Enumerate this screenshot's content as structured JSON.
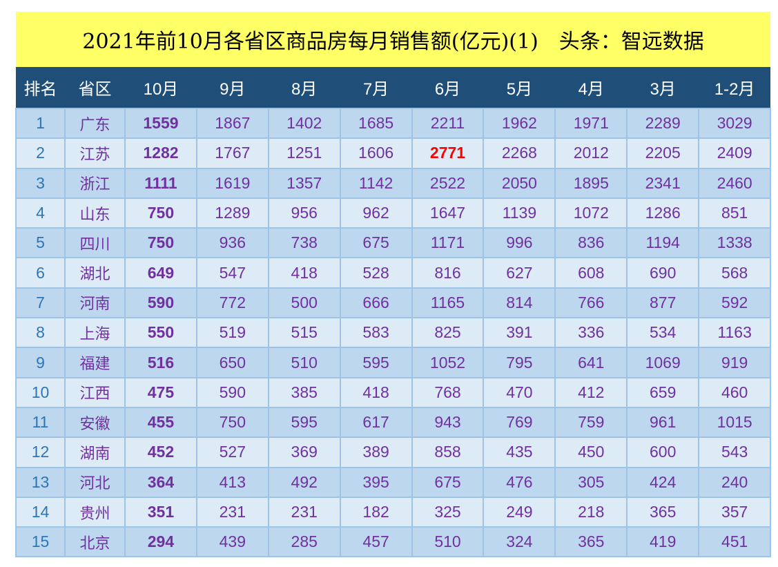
{
  "colors": {
    "title_bg": "#FFFF66",
    "title_text": "#000000",
    "header_bg": "#1F4E79",
    "header_text": "#FFFFFF",
    "row_odd": "#BDD7EE",
    "row_even": "#DDEBF7",
    "grid": "#9DC3E6",
    "rank_text": "#2E75B6",
    "value_text": "#7030A0"
  },
  "chart_data": {
    "type": "table",
    "title": "2021年前10月各省区商品房每月销售额(亿元)(1)　头条：智远数据",
    "columns": [
      "排名",
      "省区",
      "10月",
      "9月",
      "8月",
      "7月",
      "6月",
      "5月",
      "4月",
      "3月",
      "1-2月"
    ],
    "rows": [
      {
        "rank": 1,
        "province": "广东",
        "values": [
          1559,
          1867,
          1402,
          1685,
          2211,
          1962,
          1971,
          2289,
          3029
        ]
      },
      {
        "rank": 2,
        "province": "江苏",
        "values": [
          1282,
          1767,
          1251,
          1606,
          2771,
          2268,
          2012,
          2205,
          2409
        ]
      },
      {
        "rank": 3,
        "province": "浙江",
        "values": [
          1111,
          1619,
          1357,
          1142,
          2522,
          2050,
          1895,
          2341,
          2460
        ]
      },
      {
        "rank": 4,
        "province": "山东",
        "values": [
          750,
          1289,
          956,
          962,
          1647,
          1139,
          1072,
          1286,
          851
        ]
      },
      {
        "rank": 5,
        "province": "四川",
        "values": [
          750,
          936,
          738,
          675,
          1171,
          996,
          836,
          1194,
          1338
        ]
      },
      {
        "rank": 6,
        "province": "湖北",
        "values": [
          649,
          547,
          418,
          528,
          816,
          627,
          608,
          690,
          568
        ]
      },
      {
        "rank": 7,
        "province": "河南",
        "values": [
          590,
          772,
          500,
          666,
          1165,
          814,
          766,
          877,
          592
        ]
      },
      {
        "rank": 8,
        "province": "上海",
        "values": [
          550,
          519,
          515,
          583,
          825,
          391,
          336,
          534,
          1163
        ]
      },
      {
        "rank": 9,
        "province": "福建",
        "values": [
          516,
          650,
          510,
          595,
          1052,
          795,
          641,
          1069,
          919
        ]
      },
      {
        "rank": 10,
        "province": "江西",
        "values": [
          475,
          590,
          385,
          418,
          768,
          470,
          412,
          659,
          460
        ]
      },
      {
        "rank": 11,
        "province": "安徽",
        "values": [
          455,
          750,
          595,
          617,
          943,
          769,
          759,
          961,
          1015
        ]
      },
      {
        "rank": 12,
        "province": "湖南",
        "values": [
          452,
          527,
          369,
          389,
          858,
          435,
          450,
          600,
          543
        ]
      },
      {
        "rank": 13,
        "province": "河北",
        "values": [
          364,
          413,
          492,
          395,
          675,
          476,
          305,
          424,
          240
        ]
      },
      {
        "rank": 14,
        "province": "贵州",
        "values": [
          351,
          231,
          231,
          182,
          325,
          249,
          218,
          365,
          357
        ]
      },
      {
        "rank": 15,
        "province": "北京",
        "values": [
          294,
          439,
          285,
          457,
          510,
          324,
          365,
          419,
          451
        ]
      }
    ],
    "highlight": {
      "color": "#FF0000",
      "values": [
        2771
      ]
    }
  }
}
